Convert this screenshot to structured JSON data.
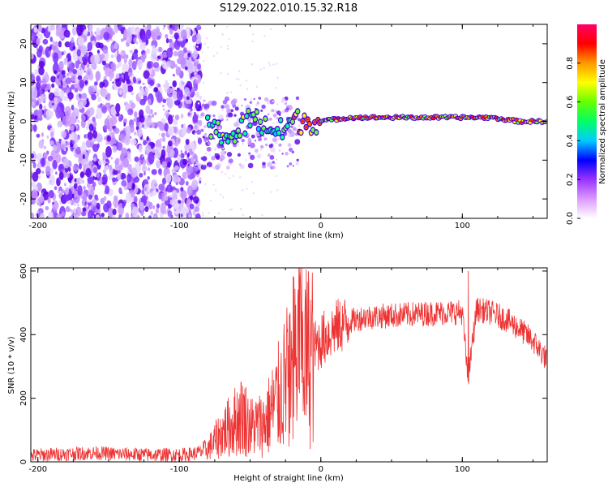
{
  "title": "S129.2022.010.15.32.R18",
  "chart_data": [
    {
      "type": "heatmap",
      "xlabel": "Height of straight line (km)",
      "ylabel": "Frequency (Hz)",
      "xlim": [
        -205,
        160
      ],
      "ylim": [
        -25,
        25
      ],
      "x_ticks": [
        -200,
        -100,
        0,
        100
      ],
      "y_ticks": [
        -20,
        -10,
        0,
        10,
        20
      ],
      "colorbar": {
        "label": "Normalized spectral amplitude",
        "ticks": [
          "0.0",
          "0.2",
          "0.4",
          "0.6",
          "0.8"
        ],
        "range": [
          0,
          1
        ]
      },
      "ridge": {
        "description_points_x": [
          -80,
          -60,
          -50,
          -40,
          -30,
          -20,
          -10,
          0,
          20,
          50,
          80,
          100,
          120,
          140,
          160
        ],
        "frequency_hz": [
          -2,
          -4,
          1,
          -1,
          -3,
          0,
          0,
          0,
          1,
          1,
          1,
          1,
          1,
          0,
          0
        ]
      },
      "colors": {
        "low": "#cc99ff",
        "mid": "#00ff66",
        "high": "#ff0033"
      }
    },
    {
      "type": "line",
      "xlabel": "Height of straight line (km)",
      "ylabel": "SNR (10 * v/v)",
      "xlim": [
        -205,
        160
      ],
      "ylim": [
        0,
        610
      ],
      "x_ticks": [
        -200,
        -100,
        0,
        100
      ],
      "y_ticks": [
        0,
        200,
        400,
        600
      ],
      "series": [
        {
          "color": "#ee3333",
          "x": [
            -205,
            -180,
            -160,
            -140,
            -120,
            -100,
            -90,
            -80,
            -70,
            -60,
            -55,
            -50,
            -40,
            -30,
            -20,
            -15,
            -10,
            0,
            10,
            20,
            30,
            50,
            70,
            90,
            100,
            104,
            110,
            120,
            130,
            140,
            150,
            160
          ],
          "y": [
            20,
            25,
            28,
            24,
            22,
            22,
            25,
            40,
            90,
            130,
            150,
            110,
            120,
            200,
            300,
            380,
            330,
            380,
            420,
            440,
            455,
            460,
            465,
            470,
            470,
            260,
            480,
            470,
            450,
            420,
            380,
            320
          ]
        }
      ]
    }
  ]
}
